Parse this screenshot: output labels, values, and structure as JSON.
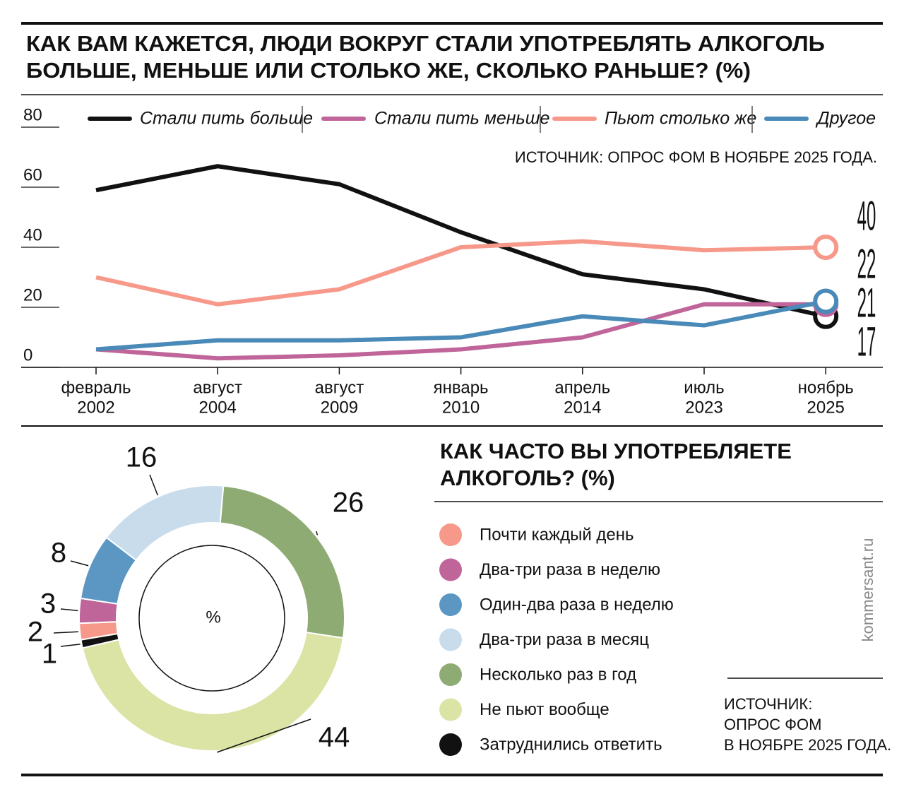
{
  "chart_data": [
    {
      "type": "line",
      "title": [
        "КАК ВАМ КАЖЕТСЯ, ЛЮДИ ВОКРУГ СТАЛИ УПОТРЕБЛЯТЬ АЛКОГОЛЬ",
        "БОЛЬШЕ, МЕНЬШЕ ИЛИ СТОЛЬКО ЖЕ, СКОЛЬКО РАНЬШЕ? (%)"
      ],
      "source": "ИСТОЧНИК: ОПРОС ФОМ В НОЯБРЕ 2025 ГОДА.",
      "categories": [
        [
          "февраль",
          "2002"
        ],
        [
          "август",
          "2004"
        ],
        [
          "август",
          "2009"
        ],
        [
          "январь",
          "2010"
        ],
        [
          "апрель",
          "2014"
        ],
        [
          "июль",
          "2023"
        ],
        [
          "ноябрь",
          "2025"
        ]
      ],
      "series": [
        {
          "name": "Стали пить больше",
          "color": "#111111",
          "values": [
            59,
            67,
            61,
            45,
            31,
            26,
            17
          ]
        },
        {
          "name": "Стали пить меньше",
          "color": "#c0659a",
          "values": [
            6,
            3,
            4,
            6,
            10,
            21,
            21
          ]
        },
        {
          "name": "Пьют столько же",
          "color": "#f7998a",
          "values": [
            30,
            21,
            26,
            40,
            42,
            39,
            40
          ]
        },
        {
          "name": "Другое",
          "color": "#4a8ab8",
          "values": [
            6,
            9,
            9,
            10,
            17,
            14,
            22
          ]
        }
      ],
      "ylim": [
        0,
        80
      ],
      "yticks": [
        0,
        20,
        40,
        60,
        80
      ]
    },
    {
      "type": "donut",
      "title": [
        "КАК ЧАСТО ВЫ УПОТРЕБЛЯЕТЕ",
        "АЛКОГОЛЬ? (%)"
      ],
      "center_label": "%",
      "categories": [
        "Почти каждый день",
        "Два-три раза в неделю",
        "Один-два раза в неделю",
        "Два-три раза в месяц",
        "Несколько раз в год",
        "Не пьют вообще",
        "Затруднились ответить"
      ],
      "values": [
        2,
        3,
        8,
        16,
        26,
        44,
        1
      ],
      "colors": [
        "#f7998a",
        "#c0659a",
        "#5b97c2",
        "#c9dcec",
        "#8fab74",
        "#dbe3a5",
        "#111111"
      ],
      "source": [
        "ИСТОЧНИК:",
        "ОПРОС ФОМ",
        "В НОЯБРЕ 2025 ГОДА."
      ]
    }
  ],
  "watermark": "kommersant.ru"
}
